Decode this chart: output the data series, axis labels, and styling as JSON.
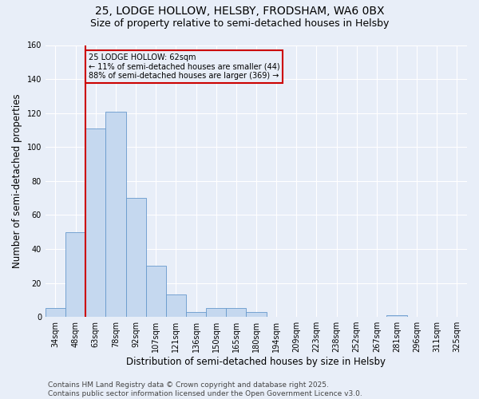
{
  "title_line1": "25, LODGE HOLLOW, HELSBY, FRODSHAM, WA6 0BX",
  "title_line2": "Size of property relative to semi-detached houses in Helsby",
  "xlabel": "Distribution of semi-detached houses by size in Helsby",
  "ylabel": "Number of semi-detached properties",
  "footer_line1": "Contains HM Land Registry data © Crown copyright and database right 2025.",
  "footer_line2": "Contains public sector information licensed under the Open Government Licence v3.0.",
  "categories": [
    "34sqm",
    "48sqm",
    "63sqm",
    "78sqm",
    "92sqm",
    "107sqm",
    "121sqm",
    "136sqm",
    "150sqm",
    "165sqm",
    "180sqm",
    "194sqm",
    "209sqm",
    "223sqm",
    "238sqm",
    "252sqm",
    "267sqm",
    "281sqm",
    "296sqm",
    "311sqm",
    "325sqm"
  ],
  "values": [
    5,
    50,
    111,
    121,
    70,
    30,
    13,
    3,
    5,
    5,
    3,
    0,
    0,
    0,
    0,
    0,
    0,
    1,
    0,
    0,
    0
  ],
  "bar_color": "#c5d8ef",
  "bar_edgecolor": "#6699cc",
  "highlight_index": 2,
  "highlight_color": "#cc0000",
  "annotation_text": "25 LODGE HOLLOW: 62sqm\n← 11% of semi-detached houses are smaller (44)\n88% of semi-detached houses are larger (369) →",
  "annotation_box_color": "#cc0000",
  "ylim": [
    0,
    160
  ],
  "yticks": [
    0,
    20,
    40,
    60,
    80,
    100,
    120,
    140,
    160
  ],
  "background_color": "#e8eef8",
  "grid_color": "#ffffff",
  "title_fontsize": 10,
  "subtitle_fontsize": 9,
  "axis_label_fontsize": 8.5,
  "tick_fontsize": 7,
  "footer_fontsize": 6.5
}
